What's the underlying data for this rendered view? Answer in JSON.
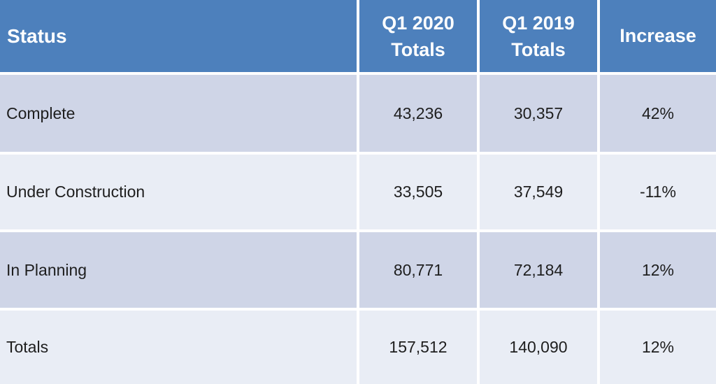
{
  "table": {
    "header": {
      "status": "Status",
      "q1_2020_line1": "Q1 2020",
      "q1_2020_line2": "Totals",
      "q1_2019_line1": "Q1 2019",
      "q1_2019_line2": "Totals",
      "increase": "Increase"
    },
    "rows": [
      {
        "status": "Complete",
        "q1_2020": "43,236",
        "q1_2019": "30,357",
        "increase": "42%"
      },
      {
        "status": "Under Construction",
        "q1_2020": "33,505",
        "q1_2019": "37,549",
        "increase": "-11%"
      },
      {
        "status": "In Planning",
        "q1_2020": "80,771",
        "q1_2019": "72,184",
        "increase": "12%"
      },
      {
        "status": "Totals",
        "q1_2020": "157,512",
        "q1_2019": "140,090",
        "increase": "12%"
      }
    ]
  },
  "colors": {
    "header_bg": "#4D80BC",
    "header_text": "#FFFFFF",
    "band_odd": "#CFD5E7",
    "band_even": "#E9EDF5",
    "separator": "#FFFFFF",
    "body_text": "#1E1E1E"
  },
  "chart_data": {
    "type": "table",
    "columns": [
      "Status",
      "Q1 2020 Totals",
      "Q1 2019 Totals",
      "Increase"
    ],
    "rows": [
      [
        "Complete",
        43236,
        30357,
        "42%"
      ],
      [
        "Under Construction",
        33505,
        37549,
        "-11%"
      ],
      [
        "In Planning",
        80771,
        72184,
        "12%"
      ],
      [
        "Totals",
        157512,
        140090,
        "12%"
      ]
    ]
  }
}
